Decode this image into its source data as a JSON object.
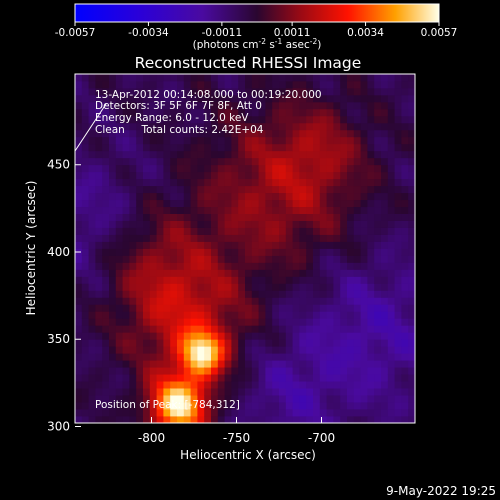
{
  "chart_data": {
    "type": "heatmap",
    "title": "Reconstructed RHESSI Image",
    "xlabel": "Heliocentric X (arcsec)",
    "ylabel": "Heliocentric Y (arcsec)",
    "xlim": [
      -845,
      -645
    ],
    "ylim": [
      302,
      502
    ],
    "x_ticks": [
      -800,
      -750,
      -700
    ],
    "y_ticks": [
      300,
      350,
      400,
      450
    ],
    "colorbar": {
      "min": -0.0057,
      "max": 0.0057,
      "ticks": [
        "-0.0057",
        "-0.0034",
        "-0.0011",
        "0.0011",
        "0.0034",
        "0.0057"
      ],
      "unit_label": "(photons cm",
      "unit_sup1": "-2",
      "unit_mid": " s",
      "unit_sup2": "-1",
      "unit_end": " asec",
      "unit_sup3": "-2",
      "unit_close": ")"
    },
    "info_lines": [
      "13-Apr-2012 00:14:08.000 to 00:19:20.000",
      "Detectors: 3F 5F 6F 7F 8F, Att 0",
      "Energy Range: 6.0 - 12.0 keV",
      "Clean     Total counts: 2.42E+04"
    ],
    "peak_label": "Position of Peak: [-784,312]",
    "sources": [
      {
        "x": -784,
        "y": 312,
        "sigma": 12,
        "value": 0.0057
      },
      {
        "x": -770,
        "y": 342,
        "sigma": 9,
        "value": 0.0046
      },
      {
        "x": -778,
        "y": 360,
        "sigma": 25,
        "value": 0.0022
      },
      {
        "x": -800,
        "y": 395,
        "sigma": 24,
        "value": 0.0015
      },
      {
        "x": -725,
        "y": 435,
        "sigma": 32,
        "value": 0.0019
      },
      {
        "x": -700,
        "y": 460,
        "sigma": 18,
        "value": 0.001
      }
    ],
    "negative_regions": [
      {
        "x": -835,
        "y": 415,
        "sigma": 28,
        "value": -0.0011
      },
      {
        "x": -670,
        "y": 355,
        "sigma": 32,
        "value": -0.0013
      },
      {
        "x": -720,
        "y": 318,
        "sigma": 22,
        "value": -0.001
      }
    ]
  },
  "timestamp": "9-May-2022 19:25"
}
